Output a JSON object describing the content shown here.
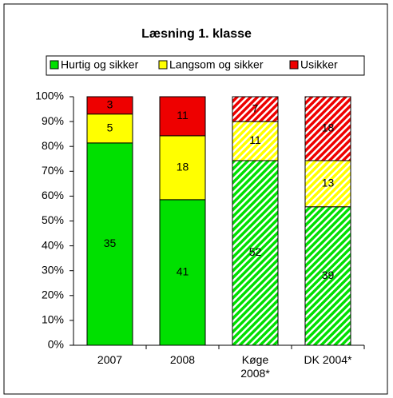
{
  "chart_data": {
    "type": "stacked_bar",
    "stack": "percent",
    "title": "Læsning 1. klasse",
    "categories": [
      "2007",
      "2008",
      "Køge\n2008*",
      "DK 2004*"
    ],
    "hatched": [
      false,
      false,
      true,
      true
    ],
    "series": [
      {
        "name": "Hurtig og sikker",
        "color": "#00e000",
        "values": [
          35,
          41,
          52,
          39
        ]
      },
      {
        "name": "Langsom og sikker",
        "color": "#ffff00",
        "values": [
          5,
          18,
          11,
          13
        ]
      },
      {
        "name": "Usikker",
        "color": "#ee0000",
        "values": [
          3,
          11,
          7,
          18
        ]
      }
    ],
    "ylim": [
      0,
      100
    ],
    "yticks": [
      {
        "value": 0,
        "label": "0%"
      },
      {
        "value": 10,
        "label": "10%"
      },
      {
        "value": 20,
        "label": "20%"
      },
      {
        "value": 30,
        "label": "30%"
      },
      {
        "value": 40,
        "label": "40%"
      },
      {
        "value": 50,
        "label": "50%"
      },
      {
        "value": 60,
        "label": "60%"
      },
      {
        "value": 70,
        "label": "70%"
      },
      {
        "value": 80,
        "label": "80%"
      },
      {
        "value": 90,
        "label": "90%"
      },
      {
        "value": 100,
        "label": "100%"
      }
    ],
    "legend": "top"
  }
}
